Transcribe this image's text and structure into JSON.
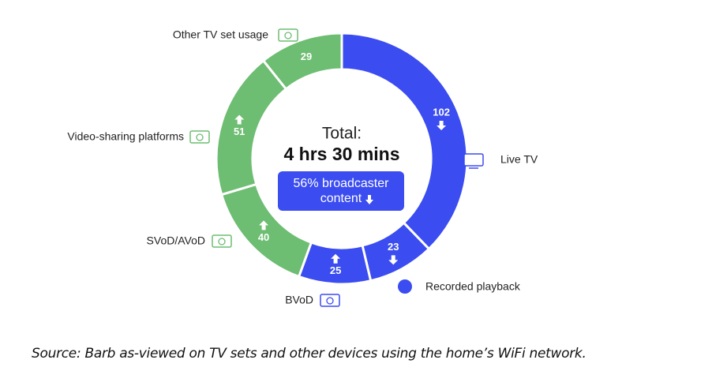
{
  "chart_data": {
    "type": "donut",
    "total_label": "Total:",
    "total_value": "4 hrs 30 mins",
    "note": "56% broadcaster content",
    "categories": [
      "Live TV",
      "Recorded playback",
      "BVoD",
      "SVoD/AVoD",
      "Video-sharing platforms",
      "Other TV set usage"
    ],
    "values": [
      102,
      23,
      25,
      40,
      51,
      29
    ],
    "colors": [
      "#3b4cf0",
      "#3b4cf0",
      "#3b4cf0",
      "#6dbd72",
      "#6dbd72",
      "#6dbd72"
    ],
    "trends": [
      "down",
      "down",
      "up",
      "up",
      "up",
      null
    ],
    "source": "Source: Barb as-viewed on TV sets and other devices using the home’s WiFi network."
  }
}
